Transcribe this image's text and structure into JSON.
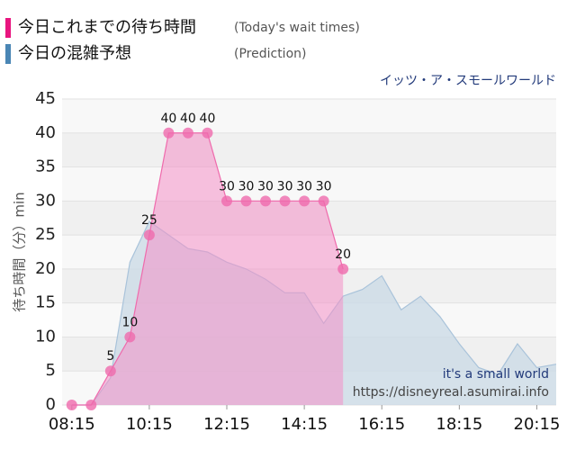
{
  "chart_data": {
    "type": "area",
    "subtitle": "イッツ・ア・スモールワールド",
    "ylabel": "待ち時間（分）min",
    "annotations": [
      "it's a small world",
      "https://disneyreal.asumirai.info"
    ],
    "xlim": [
      "08:00",
      "20:45"
    ],
    "xticks": [
      "08:15",
      "10:15",
      "12:15",
      "14:15",
      "16:15",
      "18:15",
      "20:15"
    ],
    "ylim": [
      0,
      45
    ],
    "yticks": [
      0,
      5,
      10,
      15,
      20,
      25,
      30,
      35,
      40,
      45
    ],
    "grid": true,
    "series": [
      {
        "name": "今日の混雑予想",
        "label_en": "(Prediction)",
        "color": "#4a86b5",
        "fill": "#c9d9e6",
        "line": "#a9c3da",
        "markers": false,
        "x": [
          "08:15",
          "08:45",
          "09:15",
          "09:45",
          "10:15",
          "10:45",
          "11:15",
          "11:45",
          "12:15",
          "12:45",
          "13:15",
          "13:45",
          "14:15",
          "14:45",
          "15:15",
          "15:45",
          "16:15",
          "16:45",
          "17:15",
          "17:45",
          "18:15",
          "18:45",
          "19:15",
          "19:45",
          "20:15",
          "20:45"
        ],
        "values": [
          0,
          0,
          4,
          21,
          27,
          25,
          23,
          22.5,
          21,
          20,
          18.5,
          16.5,
          16.5,
          12,
          16,
          17,
          19,
          14,
          16,
          13,
          9,
          5.5,
          4.5,
          9,
          5.5,
          6
        ]
      },
      {
        "name": "今日これまでの待ち時間",
        "label_en": "(Today's wait times)",
        "color": "#e8157f",
        "fill": "#f48fc6",
        "line": "#ef6aac",
        "markers": true,
        "x": [
          "08:15",
          "08:45",
          "09:15",
          "09:45",
          "10:15",
          "10:45",
          "11:15",
          "11:45",
          "12:15",
          "12:45",
          "13:15",
          "13:45",
          "14:15",
          "14:45",
          "15:15"
        ],
        "values": [
          0,
          0,
          5,
          10,
          25,
          40,
          40,
          40,
          30,
          30,
          30,
          30,
          30,
          30,
          20
        ]
      }
    ]
  }
}
